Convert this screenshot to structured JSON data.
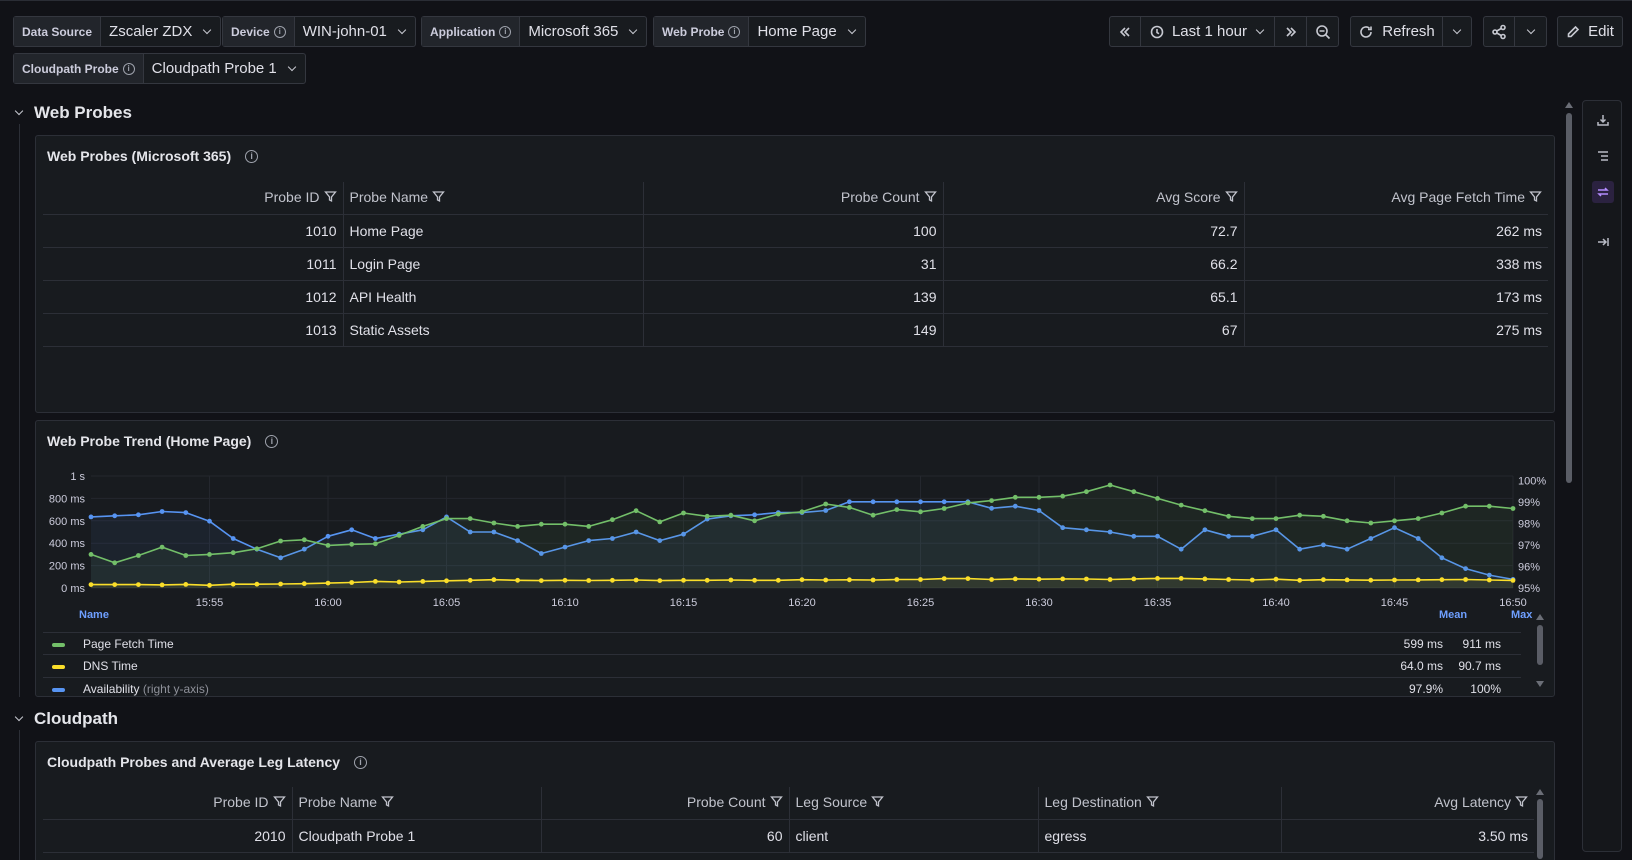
{
  "variables": [
    {
      "label": "Data Source",
      "value": "Zscaler ZDX",
      "info": false
    },
    {
      "label": "Device",
      "value": "WIN-john-01",
      "info": true
    },
    {
      "label": "Application",
      "value": "Microsoft 365",
      "info": true
    },
    {
      "label": "Web Probe",
      "value": "Home Page",
      "info": true
    },
    {
      "label": "Cloudpath Probe",
      "value": "Cloudpath Probe 1",
      "info": true
    }
  ],
  "toolbar": {
    "time_range": "Last 1 hour",
    "refresh_label": "Refresh",
    "edit_label": "Edit"
  },
  "sections": {
    "web_probes": "Web Probes",
    "cloudpath": "Cloudpath"
  },
  "web_probes_table": {
    "title": "Web Probes (Microsoft 365)",
    "columns": [
      "Probe ID",
      "Probe Name",
      "Probe Count",
      "Avg Score",
      "Avg Page Fetch Time"
    ],
    "rows": [
      [
        "1010",
        "Home Page",
        "100",
        "72.7",
        "262 ms"
      ],
      [
        "1011",
        "Login Page",
        "31",
        "66.2",
        "338 ms"
      ],
      [
        "1012",
        "API Health",
        "139",
        "65.1",
        "173 ms"
      ],
      [
        "1013",
        "Static Assets",
        "149",
        "67",
        "275 ms"
      ]
    ]
  },
  "trend_panel": {
    "title": "Web Probe Trend (Home Page)",
    "legend_headers": {
      "name": "Name",
      "mean": "Mean",
      "max": "Max"
    },
    "legend": [
      {
        "name": "Page Fetch Time",
        "suffix": "",
        "mean": "599 ms",
        "max": "911 ms",
        "color": "#73bf69"
      },
      {
        "name": "DNS Time",
        "suffix": "",
        "mean": "64.0 ms",
        "max": "90.7 ms",
        "color": "#fade2a"
      },
      {
        "name": "Availability",
        "suffix": "(right y-axis)",
        "mean": "97.9%",
        "max": "100%",
        "color": "#5794f2"
      }
    ]
  },
  "chart_data": {
    "type": "line",
    "x": [
      "15:50",
      "15:51",
      "15:52",
      "15:53",
      "15:54",
      "15:55",
      "15:56",
      "15:57",
      "15:58",
      "15:59",
      "16:00",
      "16:01",
      "16:02",
      "16:03",
      "16:04",
      "16:05",
      "16:06",
      "16:07",
      "16:08",
      "16:09",
      "16:10",
      "16:11",
      "16:12",
      "16:13",
      "16:14",
      "16:15",
      "16:16",
      "16:17",
      "16:18",
      "16:19",
      "16:20",
      "16:21",
      "16:22",
      "16:23",
      "16:24",
      "16:25",
      "16:26",
      "16:27",
      "16:28",
      "16:29",
      "16:30",
      "16:31",
      "16:32",
      "16:33",
      "16:34",
      "16:35",
      "16:36",
      "16:37",
      "16:38",
      "16:39",
      "16:40",
      "16:41",
      "16:42",
      "16:43",
      "16:44",
      "16:45",
      "16:46",
      "16:47",
      "16:48",
      "16:49",
      "16:50"
    ],
    "x_tick_labels": [
      "15:55",
      "16:00",
      "16:05",
      "16:10",
      "16:15",
      "16:20",
      "16:25",
      "16:30",
      "16:35",
      "16:40",
      "16:45",
      "16:50"
    ],
    "y_left": {
      "ticks": [
        "0 ms",
        "200 ms",
        "400 ms",
        "600 ms",
        "800 ms",
        "1 s"
      ],
      "range": [
        0,
        1000
      ],
      "unit": "ms"
    },
    "y_right": {
      "ticks": [
        "95%",
        "96%",
        "97%",
        "98%",
        "99%",
        "100%"
      ],
      "range": [
        95,
        100.2
      ],
      "unit": "%"
    },
    "grid": true,
    "series": [
      {
        "name": "Page Fetch Time",
        "axis": "left",
        "values": [
          300,
          225,
          290,
          365,
          290,
          300,
          315,
          350,
          420,
          430,
          380,
          390,
          395,
          470,
          550,
          620,
          620,
          580,
          550,
          570,
          570,
          550,
          610,
          690,
          590,
          670,
          640,
          650,
          600,
          660,
          680,
          750,
          720,
          650,
          700,
          680,
          710,
          760,
          780,
          810,
          810,
          820,
          860,
          920,
          860,
          800,
          740,
          690,
          640,
          620,
          620,
          650,
          640,
          600,
          580,
          600,
          620,
          670,
          730,
          730,
          710
        ]
      },
      {
        "name": "DNS Time",
        "axis": "left",
        "values": [
          30,
          30,
          30,
          28,
          32,
          24,
          34,
          34,
          36,
          38,
          44,
          49,
          59,
          54,
          59,
          64,
          69,
          74,
          69,
          66,
          69,
          67,
          69,
          71,
          66,
          69,
          69,
          71,
          69,
          69,
          74,
          71,
          73,
          71,
          76,
          76,
          84,
          84,
          76,
          81,
          79,
          81,
          80,
          76,
          81,
          86,
          86,
          81,
          76,
          71,
          79,
          69,
          74,
          72,
          70,
          71,
          72,
          74,
          76,
          71,
          68
        ]
      },
      {
        "name": "Availability",
        "axis": "right",
        "values": [
          98.3,
          98.35,
          98.4,
          98.55,
          98.5,
          98.1,
          97.3,
          96.8,
          96.4,
          96.8,
          97.4,
          97.7,
          97.3,
          97.5,
          97.7,
          98.3,
          97.6,
          97.6,
          97.2,
          96.6,
          96.9,
          97.2,
          97.3,
          97.6,
          97.2,
          97.5,
          98.2,
          98.35,
          98.4,
          98.5,
          98.5,
          98.6,
          99.0,
          99.0,
          99.0,
          99.0,
          99.0,
          99.0,
          98.7,
          98.8,
          98.6,
          97.8,
          97.7,
          97.6,
          97.4,
          97.4,
          96.8,
          97.7,
          97.4,
          97.4,
          97.7,
          96.8,
          97.0,
          96.8,
          97.3,
          97.8,
          97.3,
          96.4,
          95.9,
          95.6,
          95.4
        ]
      }
    ]
  },
  "cloudpath_table": {
    "title": "Cloudpath Probes and Average Leg Latency",
    "columns": [
      "Probe ID",
      "Probe Name",
      "Probe Count",
      "Leg Source",
      "Leg Destination",
      "Avg Latency"
    ],
    "rows": [
      [
        "2010",
        "Cloudpath Probe 1",
        "60",
        "client",
        "egress",
        "3.50 ms"
      ]
    ]
  },
  "icons": [
    "info-icon",
    "chevron-down-icon",
    "zoom-back-icon",
    "clock-icon",
    "zoom-forward-icon",
    "zoom-out-icon",
    "refresh-icon",
    "share-icon",
    "edit-icon",
    "filter-icon",
    "download-icon",
    "outline-icon",
    "transform-icon",
    "collapse-rail-icon"
  ]
}
